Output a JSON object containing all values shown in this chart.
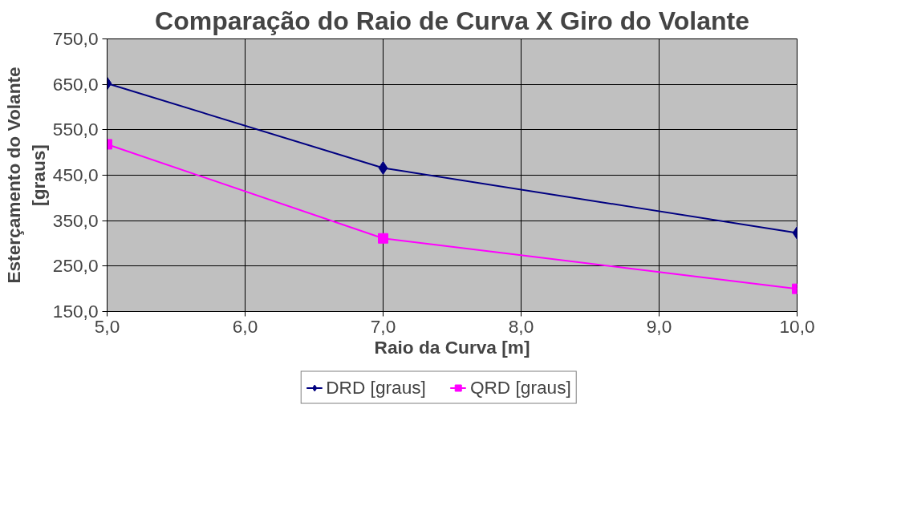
{
  "chart_data": {
    "type": "line",
    "title": "Comparação do Raio de Curva X Giro do Volante",
    "xlabel": "Raio da Curva [m]",
    "ylabel": "Esterçamento do Volante [graus]",
    "x": [
      5,
      7,
      10
    ],
    "series": [
      {
        "name": "DRD [graus]",
        "color": "#000080",
        "values": [
          652,
          466,
          323
        ],
        "marker": "diamond"
      },
      {
        "name": "QRD [graus]",
        "color": "#ff00ff",
        "values": [
          518,
          311,
          200
        ],
        "marker": "square"
      }
    ],
    "xlim": [
      5,
      10
    ],
    "ylim": [
      150,
      750
    ],
    "xticks": [
      {
        "value": 5,
        "label": "5,0"
      },
      {
        "value": 6,
        "label": "6,0"
      },
      {
        "value": 7,
        "label": "7,0"
      },
      {
        "value": 8,
        "label": "8,0"
      },
      {
        "value": 9,
        "label": "9,0"
      },
      {
        "value": 10,
        "label": "10,0"
      }
    ],
    "yticks": [
      {
        "value": 150,
        "label": "150,0"
      },
      {
        "value": 250,
        "label": "250,0"
      },
      {
        "value": 350,
        "label": "350,0"
      },
      {
        "value": 450,
        "label": "450,0"
      },
      {
        "value": 550,
        "label": "550,0"
      },
      {
        "value": 650,
        "label": "650,0"
      },
      {
        "value": 750,
        "label": "750,0"
      }
    ],
    "grid": true,
    "legend": "bottom",
    "line_style": "solid"
  }
}
